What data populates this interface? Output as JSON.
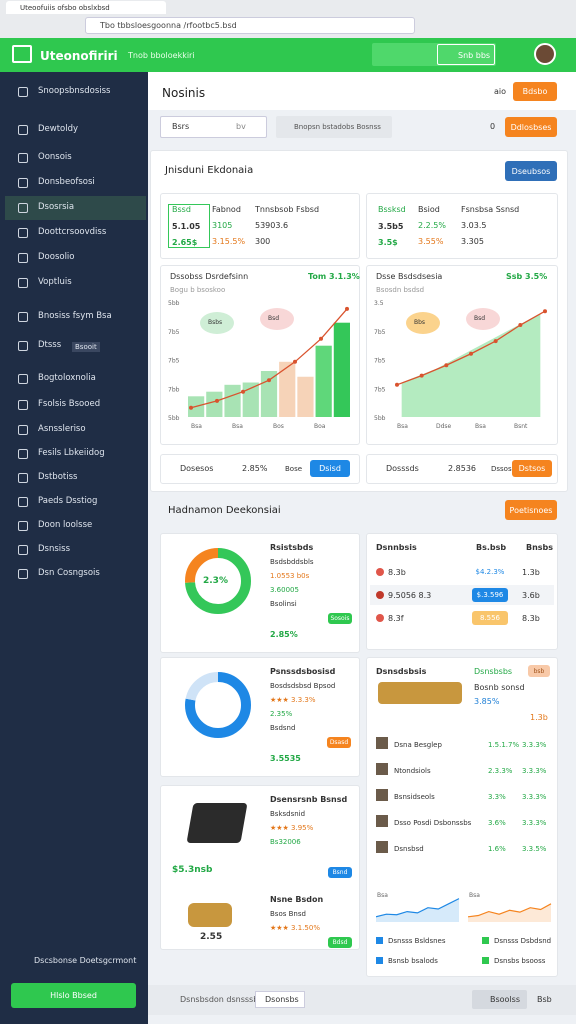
{
  "browser": {
    "tab": "Uteoofuiis ofsbo obslxbsd",
    "url": "Tbo tbbsloesgoonna /rfootbc5.bsd"
  },
  "header": {
    "brand": "Uteonofiriri",
    "subtitle": "Tnob bboloekkiri",
    "search": "Snb bbs"
  },
  "sidebar": {
    "items": [
      "Snoopsbnsdosiss",
      "Dewtoldy",
      "Oonsois",
      "Donsbeofsosi",
      "Dsosrsia",
      "Doottcrsoovdiss",
      "Doosolio",
      "Voptluis",
      "Bnosiss fsym Bsa",
      "Dtsss",
      "Bogtoloxnolia",
      "Fsolsis Bsooed",
      "Asnssleriso",
      "Fesils Lbkeiidog",
      "Dstbotiss",
      "Paeds Dsstiog",
      "Doon loolsse",
      "Dsnsiss",
      "Dsn Cosngsois"
    ],
    "pill": "Bsooit",
    "footer": "Dscsbonse Doetsgcrmont",
    "button": "Hlslo Bbsed"
  },
  "topbar": {
    "title": "Nosinis",
    "aux": "aio",
    "button": "Bdsbo",
    "search": "Bsrs",
    "search_tag": "bv",
    "select": "Bnopsn bstadobs Bosnss",
    "count": "0",
    "button2": "Ddlosbses"
  },
  "section1": {
    "title": "Jnisduni Ekdonaia",
    "button": "Dseubsos",
    "stats": [
      {
        "badge": "Bssd",
        "values": [
          "5.1.05",
          "2.65$"
        ],
        "col2": [
          "Fabnod",
          "3105",
          "3.15.5%"
        ],
        "col3": [
          "Tnnsbsob Fsbsd",
          "53903.6",
          "300"
        ]
      },
      {
        "badge": "Bssksd",
        "values": [
          "3.5b5",
          "3.5$"
        ],
        "col2": [
          "Bsiod",
          "2.2.5%",
          "3.55%"
        ],
        "col3": [
          "Fsnsbsa Ssnsd",
          "3.03.5",
          "3.305"
        ]
      }
    ],
    "charts": [
      {
        "title": "Dssobss Dsrdefsinn",
        "value": "Tom 3.1.3%",
        "subtitle": "Bogu b bsoskoo",
        "bubbles": [
          "Bsbs",
          "Bsd"
        ],
        "y_labels": [
          "5bb",
          "7b5",
          "7b5",
          "7bb",
          "5bb"
        ],
        "x_labels": [
          "Bsa",
          "Bsa",
          "Bos",
          "Boa"
        ],
        "bars": [
          18,
          22,
          28,
          30,
          40,
          48,
          35,
          62,
          82
        ],
        "bar_colors": [
          "#a8e3b4",
          "#a8e3b4",
          "#a8e3b4",
          "#a8e3b4",
          "#a8e3b4",
          "#f6d3b8",
          "#f6d3b8",
          "#5fd77a",
          "#34c759"
        ],
        "line": [
          8,
          14,
          22,
          32,
          48,
          68,
          94
        ],
        "line_color": "#d9532e"
      },
      {
        "title": "Dsse Bsdsdsesia",
        "value": "Ssb 3.5%",
        "subtitle": "Bsosdn bsdsd",
        "bubbles": [
          "Bbs",
          "Bsd"
        ],
        "y_labels": [
          "3.5",
          "7b5",
          "7b5",
          "7b5",
          "5bb"
        ],
        "x_labels": [
          "Bsa",
          "Ddse",
          "Bsa",
          "Bsnt"
        ],
        "bars": [
          30,
          36,
          42,
          50,
          58,
          66,
          74,
          82,
          90
        ],
        "bar_colors": [
          "#b4ebc0",
          "#b4ebc0",
          "#b4ebc0",
          "#b4ebc0",
          "#b4ebc0",
          "#b4ebc0",
          "#b4ebc0",
          "#b4ebc0",
          "#b4ebc0"
        ],
        "line": [
          28,
          36,
          45,
          55,
          66,
          80,
          92
        ],
        "line_color": "#d9532e"
      }
    ],
    "footers": [
      [
        "Dosesos",
        "2.85%",
        "Bose",
        "Dsisd"
      ],
      [
        "Dosssds",
        "2.8536",
        "Dssos",
        "Dstsos"
      ]
    ]
  },
  "section2": {
    "title": "Hadnamon Deekonsiai",
    "button": "Poetisnoes",
    "cards": [
      {
        "title": "Rsistsbds",
        "center": "2.3%",
        "donut": [
          74,
          26
        ],
        "donut_colors": [
          "#34c759",
          "#f5841f"
        ],
        "lines": [
          "Bsdsbddsbls",
          "1.0553 b0s",
          "3.60005",
          "Bsolinsi"
        ],
        "pill": "Sosois",
        "foot": "2.85%"
      },
      {
        "title": "Psnssdsbosisd",
        "donut": [
          78,
          22
        ],
        "donut_colors": [
          "#1e88e5",
          "#cfe3f7"
        ],
        "lines": [
          "Bosdsdsbsd Bpsod",
          "★★★ 3.3.3%",
          "2.35%",
          "Bsdsnd"
        ],
        "pill": "Dsasd",
        "foot": "3.5535"
      },
      {
        "title": "Dsensrsnb Bsnsd",
        "lines": [
          "Bsksdsnid",
          "★★★ 3.95%",
          "Bs32006"
        ],
        "label": "$5.3nsb",
        "pill": "Bsnd",
        "sub_title": "Nsne Bsdon",
        "sub_lines": [
          "Bsos Bnsd",
          "★★★ 3.1.50%"
        ],
        "sub_pill": "Bdsd",
        "coin_label": "2.55"
      }
    ],
    "table": {
      "header": [
        "Dsnnbsis",
        "Bs.bsb",
        "Bnsbs"
      ],
      "rows": [
        [
          "8.3b",
          "$4.2.3%",
          "1.3b"
        ],
        [
          "9.5056 8.3",
          "$.3.596",
          "3.6b"
        ],
        [
          "8.3f",
          "8.556",
          "8.3b"
        ]
      ]
    },
    "list": {
      "title": "Dsnsdsbsis",
      "pill": "bsb",
      "sub": "Dsnsbsbs",
      "summary": [
        "Bosnb sonsd",
        "3.85%",
        "1.3b"
      ],
      "rows": [
        [
          "Dsna Besglep",
          "1.5.1.7%",
          "3.3.3%"
        ],
        [
          "Ntondsiols",
          "2.3.3%",
          "3.3.3%"
        ],
        [
          "Bsnsidseols",
          "3.3%",
          "3.3.3%"
        ],
        [
          "Dsso Posdi Dsbonssbs",
          "3.6%",
          "3.3.3%"
        ],
        [
          "Dsnsbsd",
          "1.6%",
          "3.3.5%"
        ]
      ],
      "sparks": [
        {
          "label": "Bsa",
          "values": [
            20,
            30,
            28,
            40,
            35,
            55,
            50,
            70,
            90
          ],
          "color": "#1e88e5"
        },
        {
          "label": "Bsa",
          "values": [
            20,
            25,
            40,
            30,
            45,
            38,
            55,
            48,
            70
          ],
          "color": "#f5841f"
        }
      ],
      "legend": [
        "Dsnsss Bsldsnes",
        "Dsnsss Dsbdsnd",
        "Bsnsb bsalods",
        "Dsnsbs bsooss"
      ]
    }
  },
  "bottom": {
    "left": "Dsnsbsdon dsnsssbs",
    "select": "Dsonsbs",
    "right": "Bsoolss",
    "right2": "Bsb"
  }
}
